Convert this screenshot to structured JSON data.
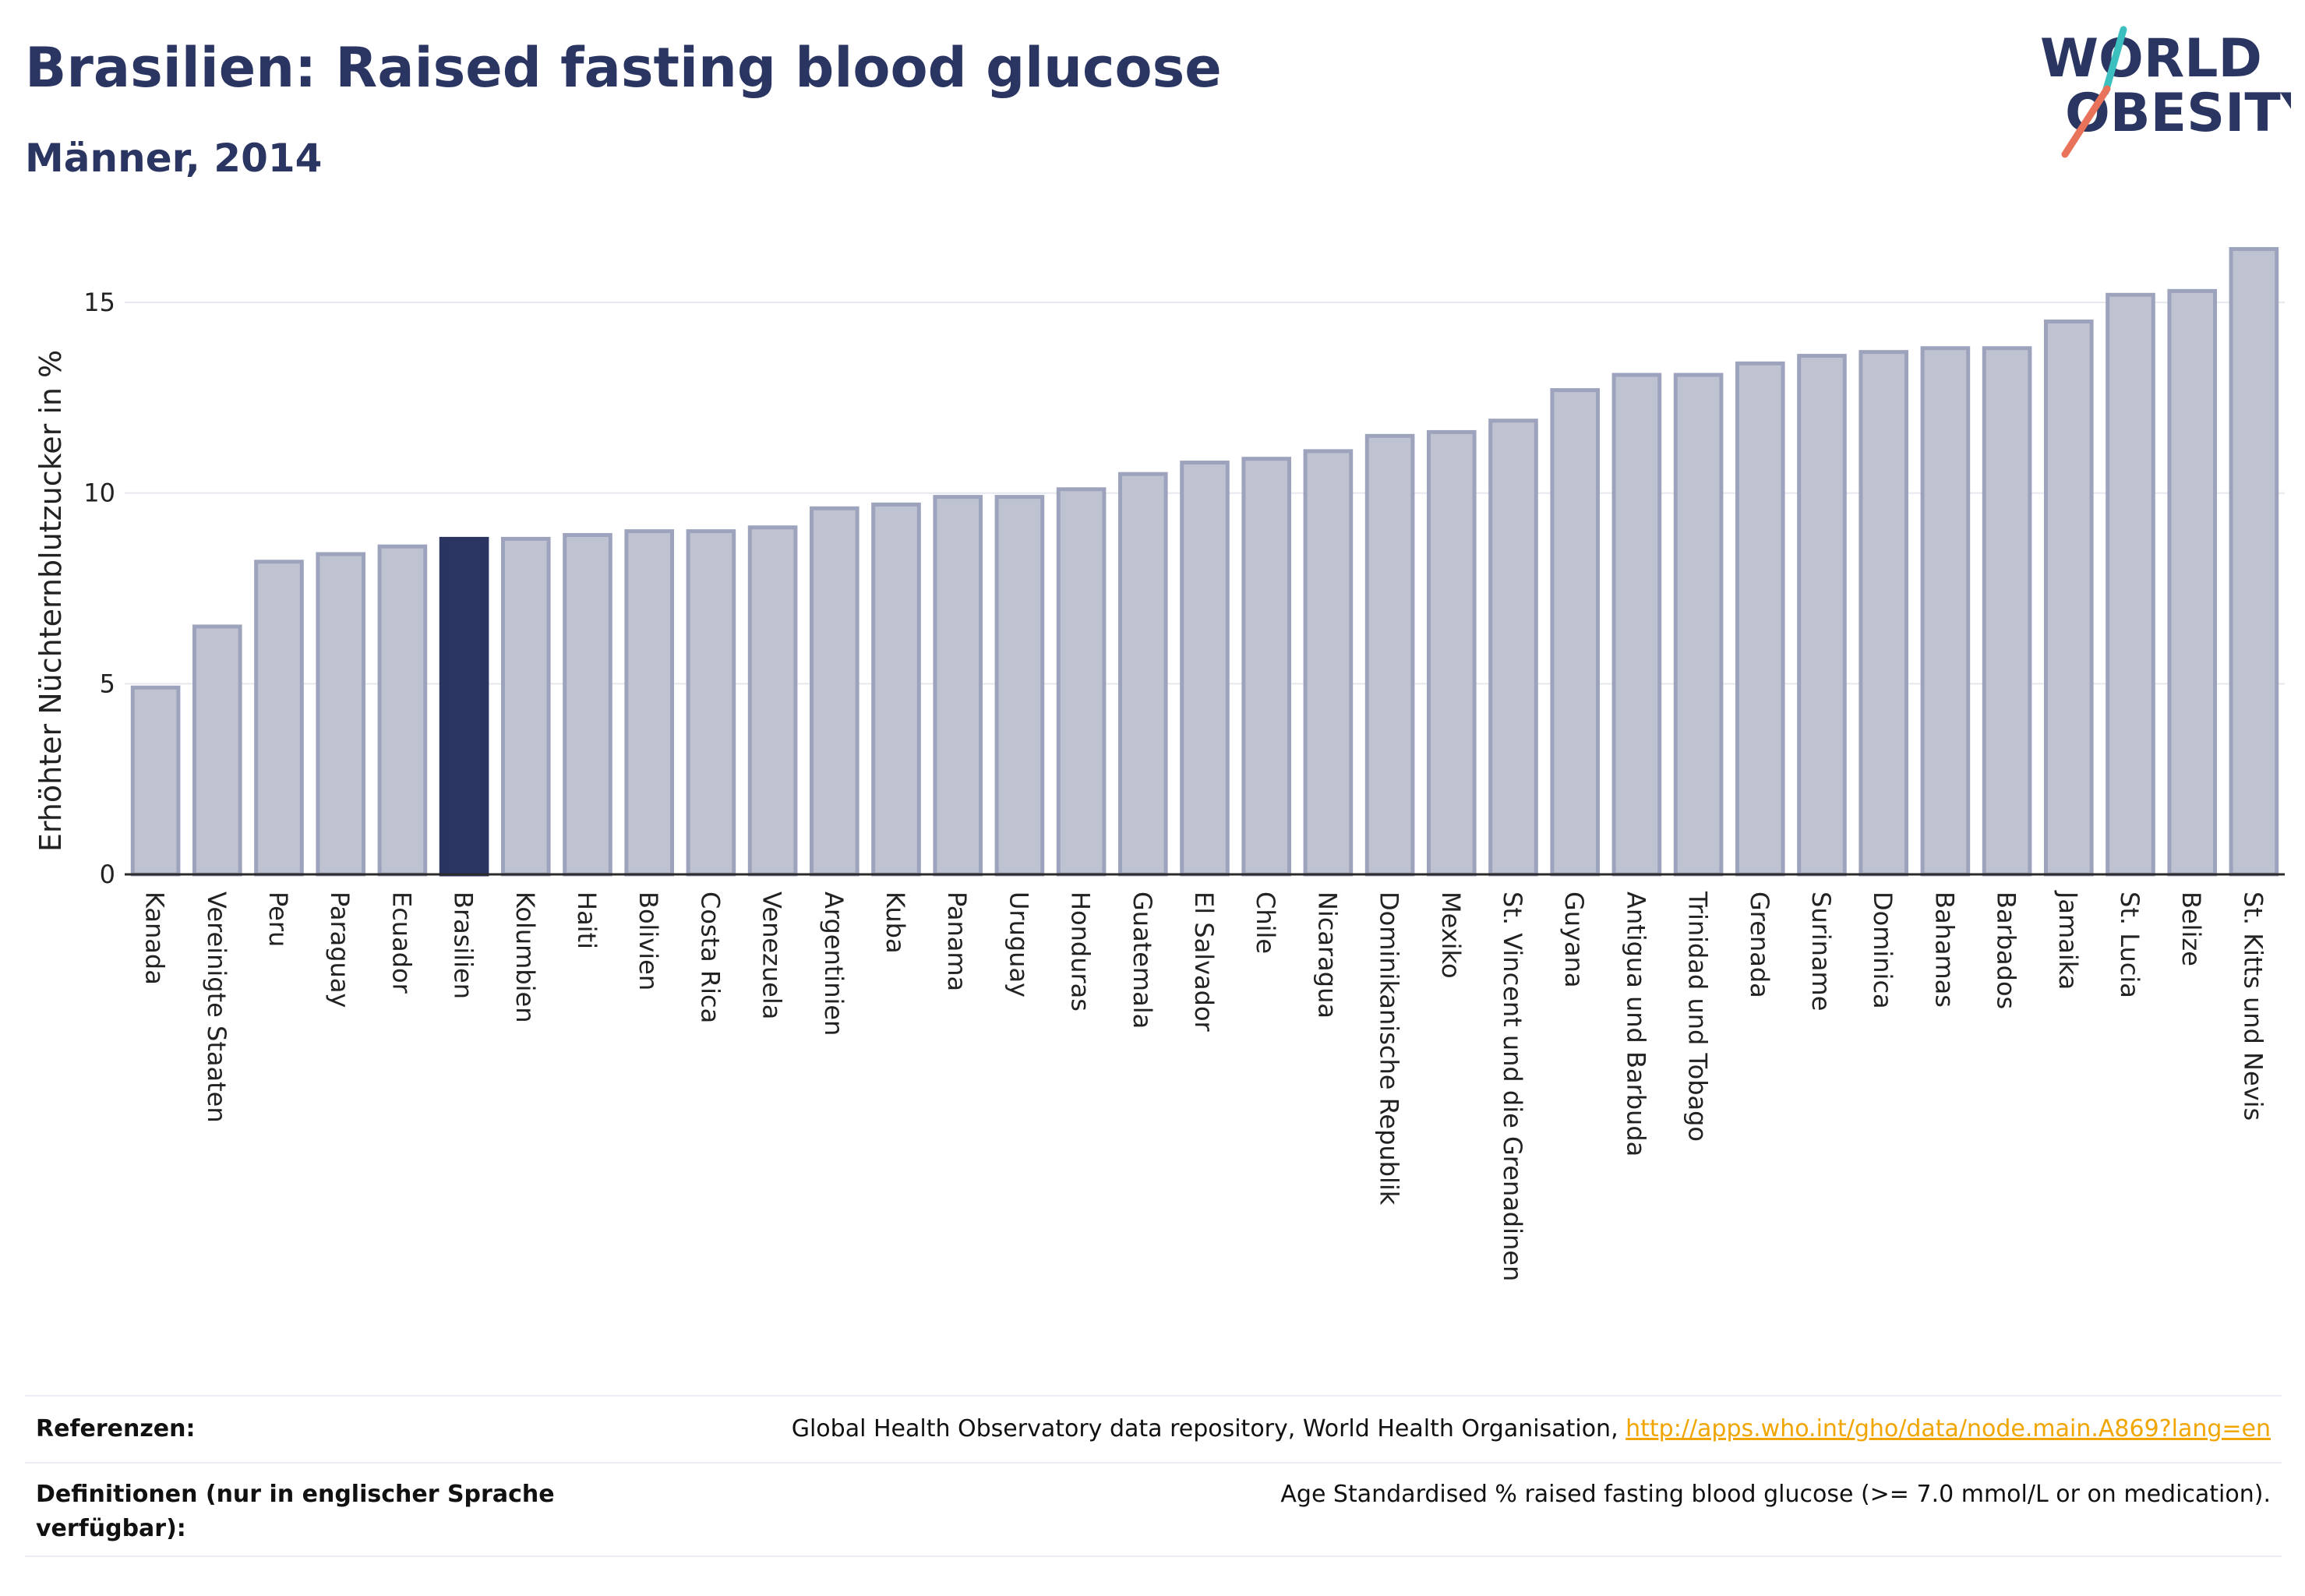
{
  "header": {
    "title": "Brasilien: Raised fasting blood glucose",
    "subtitle": "Männer, 2014"
  },
  "logo": {
    "line1": "WORLD",
    "line2": "OBESITY"
  },
  "colors": {
    "bar_fill": "#bfc3d1",
    "bar_stroke": "#9da3bd",
    "highlight": "#2b3562",
    "grid": "#e6e8ef",
    "logo_slash_top": "#3bbfbf",
    "logo_slash_bottom": "#e8735a"
  },
  "chart_data": {
    "type": "bar",
    "ylabel": "Erhöhter Nüchternblutzucker in %",
    "xlabel": "",
    "ylim": [
      0,
      16.8
    ],
    "yticks": [
      0,
      5,
      10,
      15
    ],
    "highlight_category": "Brasilien",
    "grid": true,
    "categories": [
      "Kanada",
      "Vereinigte Staaten",
      "Peru",
      "Paraguay",
      "Ecuador",
      "Brasilien",
      "Kolumbien",
      "Haiti",
      "Bolivien",
      "Costa Rica",
      "Venezuela",
      "Argentinien",
      "Kuba",
      "Panama",
      "Uruguay",
      "Honduras",
      "Guatemala",
      "El Salvador",
      "Chile",
      "Nicaragua",
      "Dominikanische Republik",
      "Mexiko",
      "St. Vincent und die Grenadinen",
      "Guyana",
      "Antigua und Barbuda",
      "Trinidad und Tobago",
      "Grenada",
      "Suriname",
      "Dominica",
      "Bahamas",
      "Barbados",
      "Jamaika",
      "St. Lucia",
      "Belize",
      "St. Kitts und Nevis"
    ],
    "values": [
      4.9,
      6.5,
      8.2,
      8.4,
      8.6,
      8.8,
      8.8,
      8.9,
      9.0,
      9.0,
      9.1,
      9.6,
      9.7,
      9.9,
      9.9,
      10.1,
      10.5,
      10.8,
      10.9,
      11.1,
      11.5,
      11.6,
      11.9,
      12.7,
      13.1,
      13.1,
      13.4,
      13.6,
      13.7,
      13.8,
      13.8,
      14.5,
      15.2,
      15.3,
      16.4
    ]
  },
  "footer": {
    "references_label": "Referenzen:",
    "references_text": "Global Health Observatory data repository, World Health Organisation, ",
    "references_link": "http://apps.who.int/gho/data/node.main.A869?lang=en",
    "definitions_label": "Definitionen (nur in englischer Sprache verfügbar):",
    "definitions_text": "Age Standardised % raised fasting blood glucose (>= 7.0 mmol/L or on medication)."
  }
}
